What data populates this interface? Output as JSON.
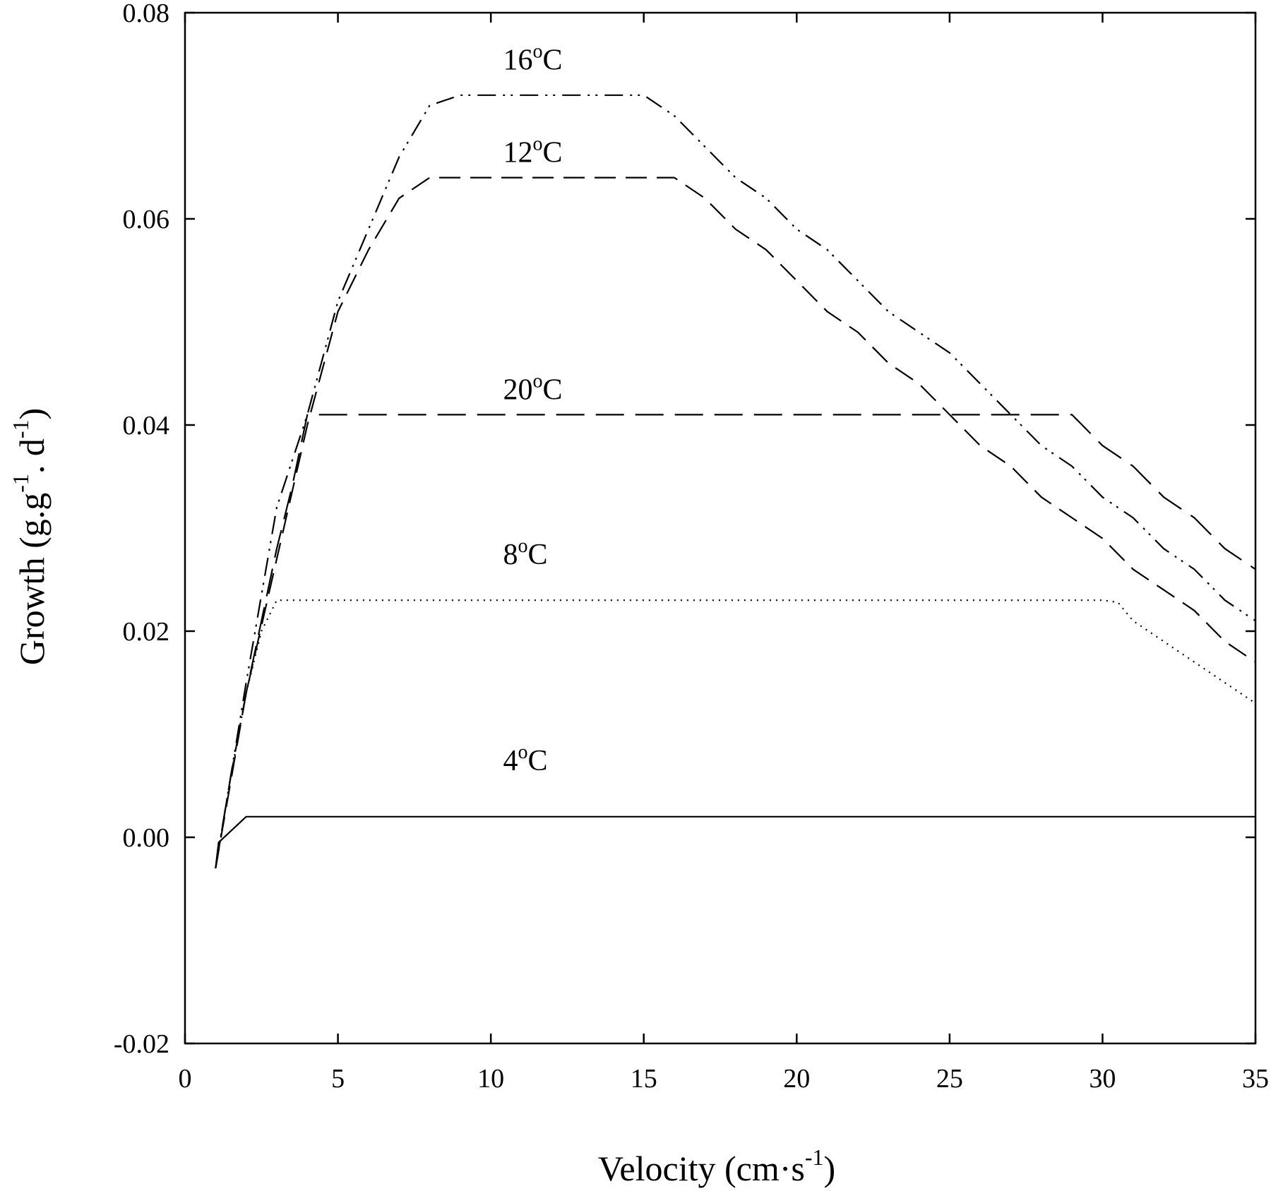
{
  "chart_data": {
    "type": "line",
    "xlabel": "Velocity (cm·s",
    "xlabel_sup": "-1",
    "xlabel_end": ")",
    "ylabel_parts": [
      "Growth (g.g",
      "-1",
      ". d",
      "-1",
      ")"
    ],
    "xlim": [
      0,
      35
    ],
    "ylim": [
      -0.02,
      0.08
    ],
    "xticks": [
      "0",
      "5",
      "10",
      "15",
      "20",
      "25",
      "30",
      "35"
    ],
    "yticks": [
      "-0.02",
      "0.00",
      "0.02",
      "0.04",
      "0.06",
      "0.08"
    ],
    "grid": false,
    "legend": "none (series labeled inline)",
    "series": [
      {
        "name": "4",
        "label_unit_sup": "o",
        "label_unit": "C",
        "label_at": [
          10.4,
          0.0065
        ],
        "dash": "solid",
        "x": [
          1,
          1.1,
          2,
          35
        ],
        "y": [
          -0.003,
          -0.0005,
          0.002,
          0.002
        ]
      },
      {
        "name": "8",
        "label_unit_sup": "o",
        "label_unit": "C",
        "label_at": [
          10.4,
          0.0265
        ],
        "dash": "dotted",
        "x": [
          1,
          1.5,
          2,
          2.5,
          3,
          29,
          30,
          30.5,
          31,
          32,
          33,
          34,
          35
        ],
        "y": [
          -0.003,
          0.006,
          0.014,
          0.02,
          0.023,
          0.023,
          0.023,
          0.0228,
          0.021,
          0.019,
          0.017,
          0.015,
          0.013
        ]
      },
      {
        "name": "20",
        "label_unit_sup": "o",
        "label_unit": "C",
        "label_at": [
          10.4,
          0.0425
        ],
        "dash": "long-dash",
        "x": [
          1,
          1.5,
          2,
          2.5,
          3,
          3.5,
          4,
          29,
          30,
          31,
          32,
          33,
          34,
          35
        ],
        "y": [
          -0.003,
          0.006,
          0.014,
          0.021,
          0.028,
          0.034,
          0.041,
          0.041,
          0.038,
          0.036,
          0.033,
          0.031,
          0.028,
          0.026
        ]
      },
      {
        "name": "12",
        "label_unit_sup": "o",
        "label_unit": "C",
        "label_at": [
          10.4,
          0.0655
        ],
        "dash": "dashed",
        "x": [
          1,
          2,
          3,
          4,
          5,
          6,
          7,
          8,
          16,
          17,
          18,
          19,
          20,
          21,
          22,
          23,
          24,
          25,
          26,
          27,
          28,
          29,
          30,
          31,
          32,
          33,
          34,
          35
        ],
        "y": [
          -0.003,
          0.014,
          0.027,
          0.04,
          0.051,
          0.057,
          0.062,
          0.064,
          0.064,
          0.062,
          0.059,
          0.057,
          0.054,
          0.051,
          0.049,
          0.046,
          0.044,
          0.041,
          0.038,
          0.036,
          0.033,
          0.031,
          0.029,
          0.026,
          0.024,
          0.022,
          0.019,
          0.017
        ]
      },
      {
        "name": "16",
        "label_unit_sup": "o",
        "label_unit": "C",
        "label_at": [
          10.4,
          0.0745
        ],
        "dash": "dash-dot-dot",
        "x": [
          1,
          2,
          3,
          4,
          5,
          6,
          7,
          8,
          9,
          15,
          16,
          17,
          18,
          19,
          20,
          21,
          22,
          23,
          24,
          25,
          26,
          27,
          28,
          29,
          30,
          31,
          32,
          33,
          34,
          35
        ],
        "y": [
          -0.003,
          0.015,
          0.032,
          0.041,
          0.052,
          0.059,
          0.066,
          0.071,
          0.072,
          0.072,
          0.07,
          0.067,
          0.064,
          0.062,
          0.059,
          0.057,
          0.054,
          0.051,
          0.049,
          0.047,
          0.044,
          0.041,
          0.038,
          0.036,
          0.033,
          0.031,
          0.028,
          0.026,
          0.023,
          0.021
        ]
      }
    ]
  }
}
